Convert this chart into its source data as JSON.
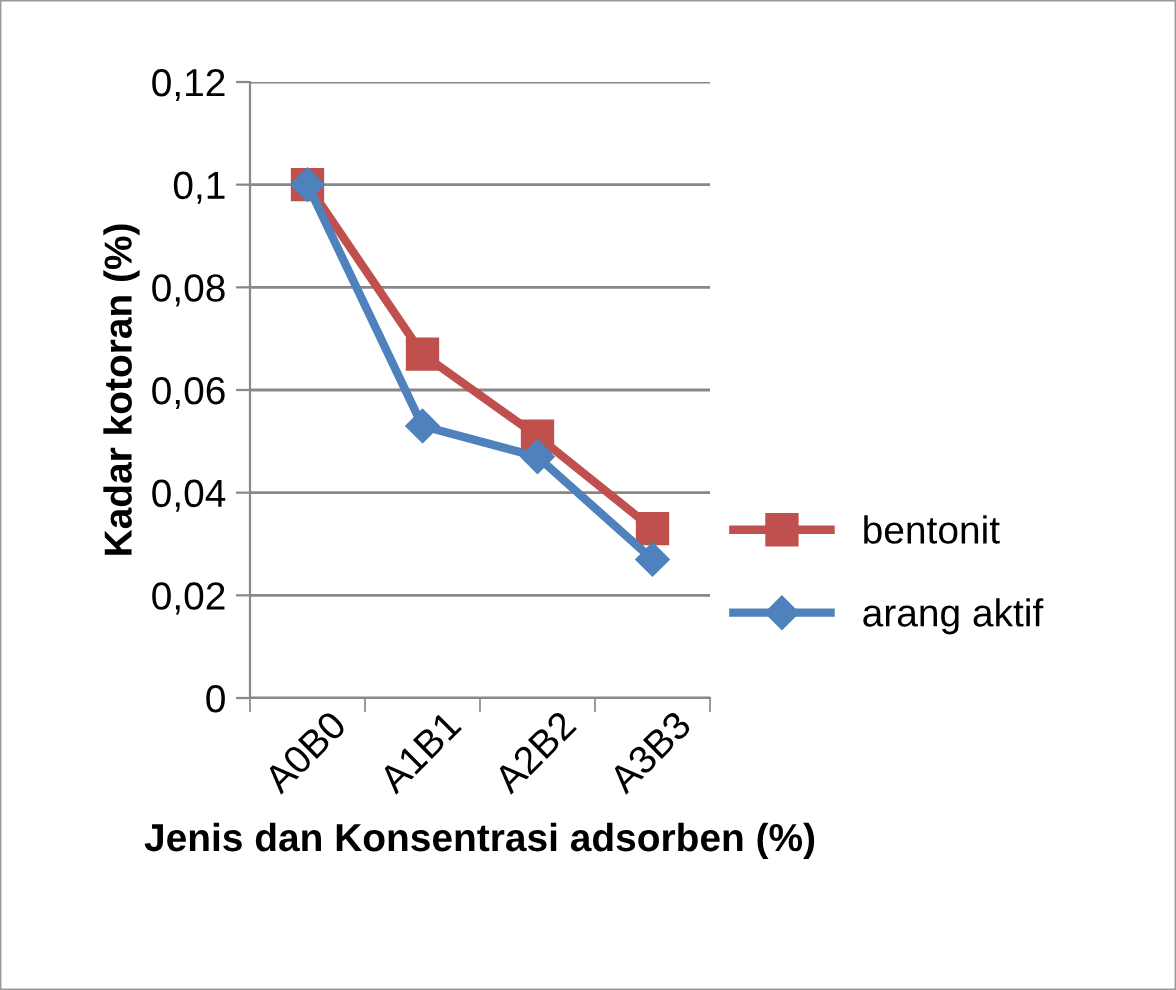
{
  "chart_data": {
    "type": "line",
    "xlabel": "Jenis dan Konsentrasi adsorben (%)",
    "ylabel": "Kadar kotoran (%)",
    "categories": [
      "A0B0",
      "A1B1",
      "A2B2",
      "A3B3"
    ],
    "series": [
      {
        "name": "bentonit",
        "color": "#c0504d",
        "marker": "square",
        "values": [
          0.1,
          0.067,
          0.051,
          0.033
        ]
      },
      {
        "name": "arang aktif",
        "color": "#4f81bd",
        "marker": "diamond",
        "values": [
          0.1,
          0.053,
          0.047,
          0.027
        ]
      }
    ],
    "ylim": [
      0,
      0.12
    ],
    "yticks": [
      {
        "value": 0,
        "label": "0"
      },
      {
        "value": 0.02,
        "label": "0,02"
      },
      {
        "value": 0.04,
        "label": "0,04"
      },
      {
        "value": 0.06,
        "label": "0,06"
      },
      {
        "value": 0.08,
        "label": "0,08"
      },
      {
        "value": 0.1,
        "label": "0,1"
      },
      {
        "value": 0.12,
        "label": "0,12"
      }
    ],
    "grid": "y",
    "legend": "right",
    "line_style": "solid"
  }
}
